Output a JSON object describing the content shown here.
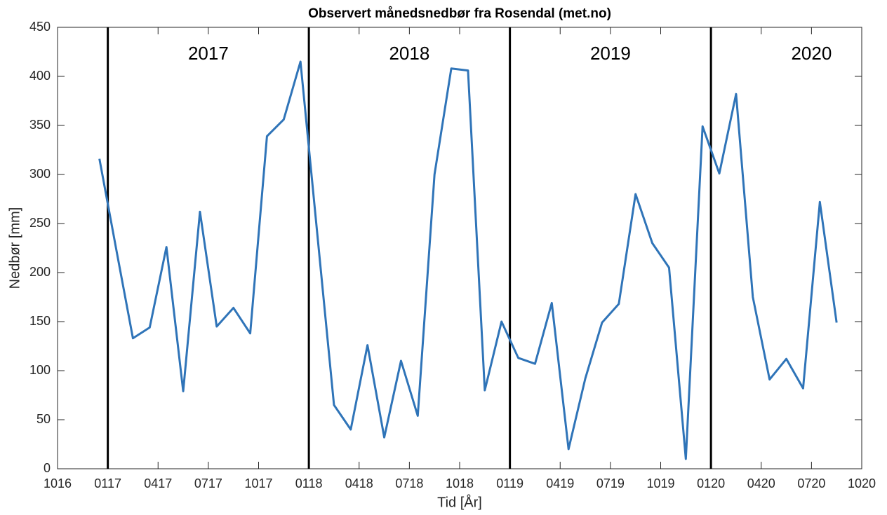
{
  "chart_data": {
    "type": "line",
    "title": "Observert månedsnedbør fra Rosendal (met.no)",
    "xlabel": "Tid [År]",
    "ylabel": "Nedbør [mm]",
    "x": [
      2.5,
      3.5,
      4.5,
      5.5,
      6.5,
      7.5,
      8.5,
      9.5,
      10.5,
      11.5,
      12.5,
      13.5,
      14.5,
      15.5,
      16.5,
      17.5,
      18.5,
      19.5,
      20.5,
      21.5,
      22.5,
      23.5,
      24.5,
      25.5,
      26.5,
      27.5,
      28.5,
      29.5,
      30.5,
      31.5,
      32.5,
      33.5,
      34.5,
      35.5,
      36.5,
      37.5,
      38.5,
      39.5,
      40.5,
      41.5,
      42.5,
      43.5,
      44.5,
      45.5,
      46.5
    ],
    "series": [
      {
        "name": "Nedbør",
        "color": "#2f74b8",
        "values": [
          316,
          224,
          133,
          144,
          226,
          79,
          262,
          145,
          164,
          138,
          339,
          356,
          415,
          240,
          65,
          40,
          126,
          32,
          110,
          54,
          300,
          408,
          406,
          80,
          150,
          113,
          107,
          169,
          20,
          92,
          149,
          168,
          280,
          230,
          205,
          10,
          349,
          301,
          382,
          175,
          91,
          112,
          82,
          272,
          149
        ]
      }
    ],
    "xlim": [
      0,
      48
    ],
    "xticks": [
      {
        "value": 0,
        "label": "1016"
      },
      {
        "value": 3,
        "label": "0117"
      },
      {
        "value": 6,
        "label": "0417"
      },
      {
        "value": 9,
        "label": "0717"
      },
      {
        "value": 12,
        "label": "1017"
      },
      {
        "value": 15,
        "label": "0118"
      },
      {
        "value": 18,
        "label": "0418"
      },
      {
        "value": 21,
        "label": "0718"
      },
      {
        "value": 24,
        "label": "1018"
      },
      {
        "value": 27,
        "label": "0119"
      },
      {
        "value": 30,
        "label": "0419"
      },
      {
        "value": 33,
        "label": "0719"
      },
      {
        "value": 36,
        "label": "1019"
      },
      {
        "value": 39,
        "label": "0120"
      },
      {
        "value": 42,
        "label": "0420"
      },
      {
        "value": 45,
        "label": "0720"
      },
      {
        "value": 48,
        "label": "1020"
      }
    ],
    "ylim": [
      0,
      450
    ],
    "yticks": [
      0,
      50,
      100,
      150,
      200,
      250,
      300,
      350,
      400,
      450
    ],
    "year_lines": [
      3,
      15,
      27,
      39
    ],
    "year_labels": [
      "2017",
      "2018",
      "2019",
      "2020"
    ],
    "grid": false
  }
}
